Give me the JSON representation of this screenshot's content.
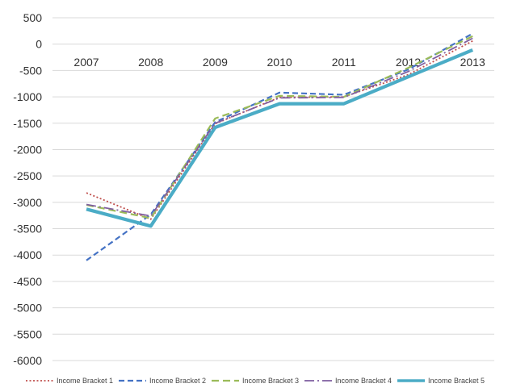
{
  "chart_data": {
    "type": "line",
    "title": "",
    "xlabel": "",
    "ylabel": "",
    "categories": [
      "2007",
      "2008",
      "2009",
      "2010",
      "2011",
      "2012",
      "2013"
    ],
    "ylim": [
      -6000,
      500
    ],
    "yticks": [
      500,
      0,
      -500,
      -1000,
      -1500,
      -2000,
      -2500,
      -3000,
      -3500,
      -4000,
      -4500,
      -5000,
      -5500,
      -6000
    ],
    "grid": true,
    "legend_position": "bottom",
    "series": [
      {
        "name": "Income Bracket 1",
        "color": "#c0504d",
        "dash": "dotted",
        "values": [
          -2820,
          -3320,
          -1510,
          -1010,
          -1000,
          -580,
          60
        ]
      },
      {
        "name": "Income Bracket 2",
        "color": "#4472c4",
        "dash": "dashed",
        "values": [
          -4100,
          -3230,
          -1480,
          -920,
          -960,
          -480,
          200
        ]
      },
      {
        "name": "Income Bracket 3",
        "color": "#9bbb59",
        "dash": "long-dash",
        "values": [
          -3050,
          -3300,
          -1410,
          -980,
          -1000,
          -450,
          150
        ]
      },
      {
        "name": "Income Bracket 4",
        "color": "#7f5fa0",
        "dash": "dash-dot",
        "values": [
          -3040,
          -3260,
          -1500,
          -1020,
          -1010,
          -520,
          110
        ]
      },
      {
        "name": "Income Bracket 5",
        "color": "#4bacc6",
        "dash": "solid-thick",
        "values": [
          -3130,
          -3450,
          -1580,
          -1130,
          -1130,
          -620,
          -110
        ]
      }
    ]
  }
}
